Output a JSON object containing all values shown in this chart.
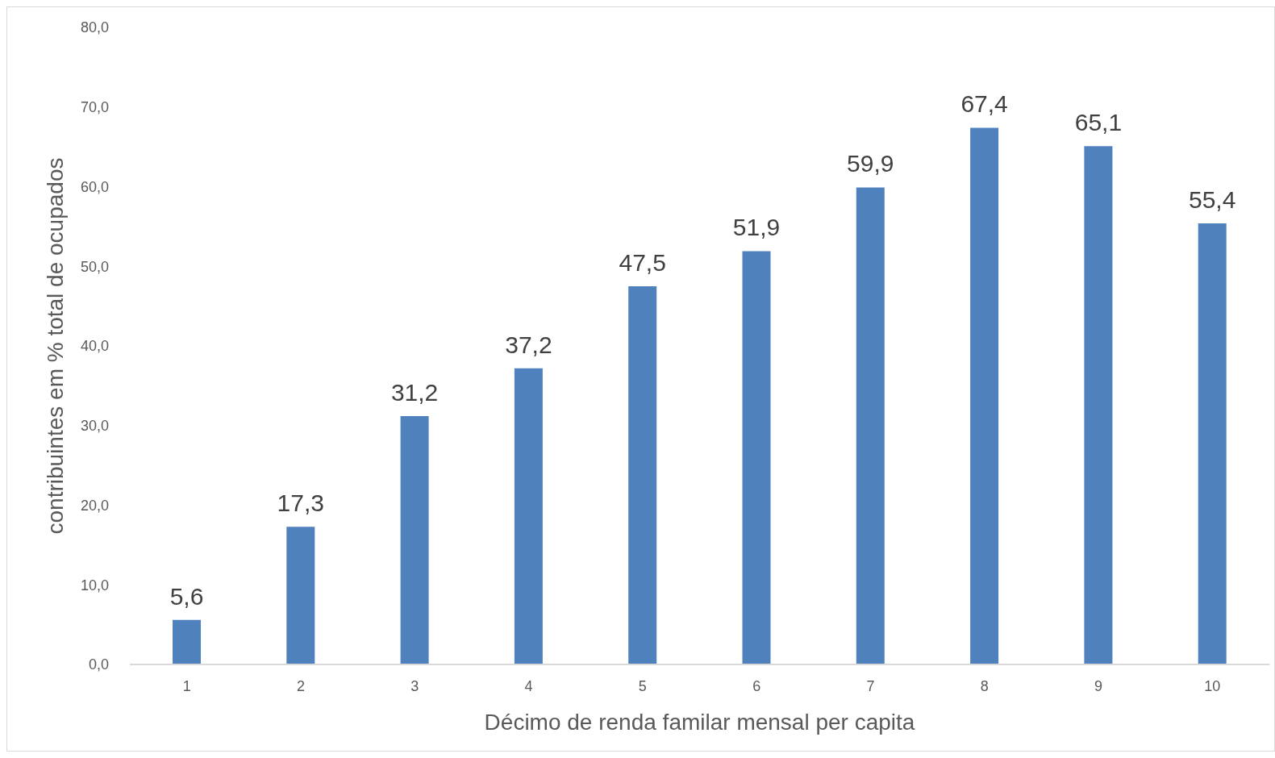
{
  "chart_data": {
    "type": "bar",
    "xlabel": "Décimo de renda familar mensal per capita",
    "ylabel": "contribuintes em % total de ocupados",
    "categories": [
      "1",
      "2",
      "3",
      "4",
      "5",
      "6",
      "7",
      "8",
      "9",
      "10"
    ],
    "values": [
      5.6,
      17.3,
      31.2,
      37.2,
      47.5,
      51.9,
      59.9,
      67.4,
      65.1,
      55.4
    ],
    "value_labels": [
      "5,6",
      "17,3",
      "31,2",
      "37,2",
      "47,5",
      "51,9",
      "59,9",
      "67,4",
      "65,1",
      "55,4"
    ],
    "color": "#4f81bd",
    "ylim": [
      0,
      80
    ],
    "yticks": [
      {
        "value": 0,
        "label": "0,0"
      },
      {
        "value": 10,
        "label": "10,0"
      },
      {
        "value": 20,
        "label": "20,0"
      },
      {
        "value": 30,
        "label": "30,0"
      },
      {
        "value": 40,
        "label": "40,0"
      },
      {
        "value": 50,
        "label": "50,0"
      },
      {
        "value": 60,
        "label": "60,0"
      },
      {
        "value": 70,
        "label": "70,0"
      },
      {
        "value": 80,
        "label": "80,0"
      }
    ]
  }
}
